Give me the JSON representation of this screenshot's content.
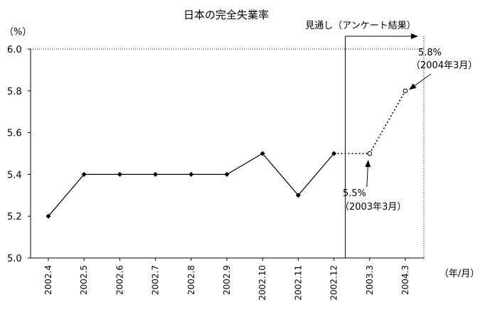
{
  "chart_data": {
    "type": "line",
    "title": "日本の完全失業率",
    "ylabel": "（%）",
    "xlabel": "（年/月）",
    "ylim": [
      5.0,
      6.0
    ],
    "yticks": [
      "5.0",
      "5.2",
      "5.4",
      "5.6",
      "5.8",
      "6.0"
    ],
    "ytick_values": [
      5.0,
      5.2,
      5.4,
      5.6,
      5.8,
      6.0
    ],
    "categories": [
      "2002.4",
      "2002.5",
      "2002.6",
      "2002.7",
      "2002.8",
      "2002.9",
      "2002.10",
      "2002.11",
      "2002.12",
      "2003.3",
      "2004.3"
    ],
    "series": [
      {
        "style": "solid",
        "marker": "diamond",
        "x": [
          "2002.4",
          "2002.5",
          "2002.6",
          "2002.7",
          "2002.8",
          "2002.9",
          "2002.10",
          "2002.11",
          "2002.12"
        ],
        "values": [
          5.2,
          5.4,
          5.4,
          5.4,
          5.4,
          5.4,
          5.5,
          5.3,
          5.5
        ]
      },
      {
        "style": "dotted",
        "marker": "open-circle",
        "x": [
          "2002.12",
          "2003.3",
          "2004.3"
        ],
        "values": [
          5.5,
          5.5,
          5.8
        ]
      }
    ],
    "forecast_region": {
      "label": "見通し（アンケート結果）",
      "start": "2002.12",
      "end": "2004.3"
    },
    "annotations": [
      {
        "x": "2003.3",
        "y": 5.5,
        "value": "5.5%",
        "note": "（2003年3月）"
      },
      {
        "x": "2004.3",
        "y": 5.8,
        "value": "5.8%",
        "note": "（2004年3月）"
      }
    ],
    "grid": false,
    "legend": "none"
  }
}
